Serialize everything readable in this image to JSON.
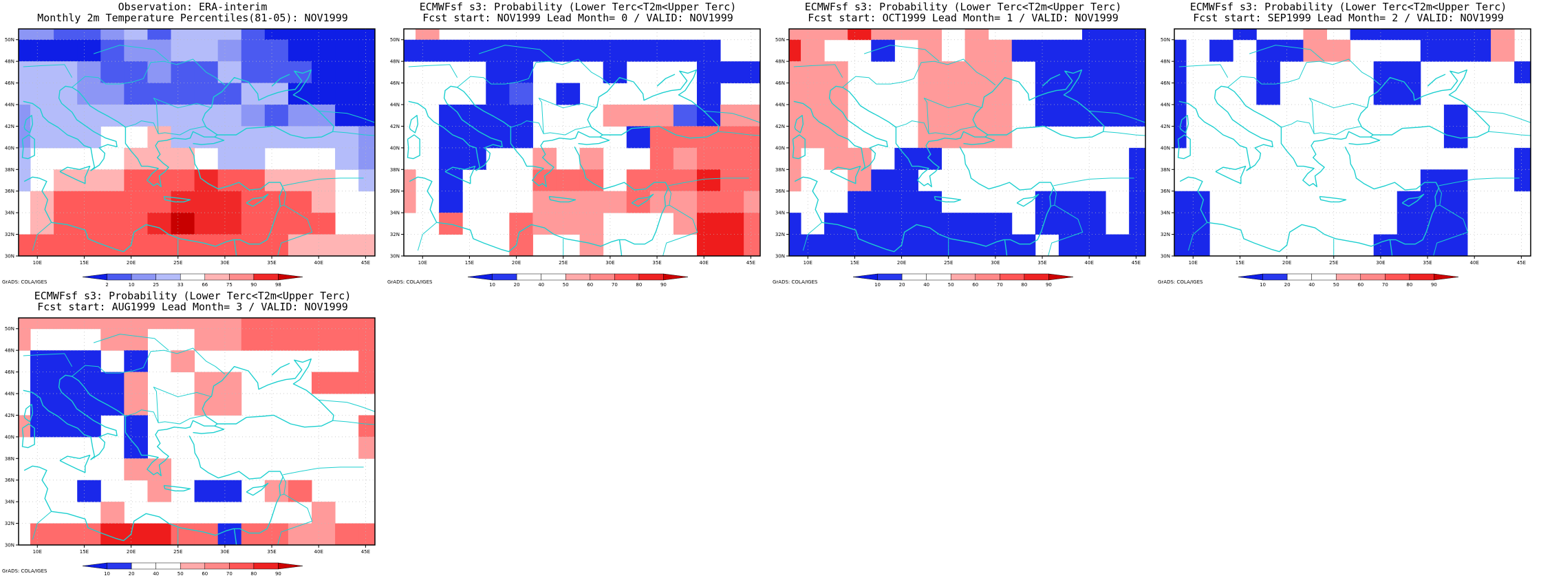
{
  "page": {
    "credit": "GrADS: COLA/IGES"
  },
  "axes": {
    "lon_ticks": [
      "10E",
      "15E",
      "20E",
      "25E",
      "30E",
      "35E",
      "40E",
      "45E"
    ],
    "lat_ticks": [
      "30N",
      "32N",
      "34N",
      "36N",
      "38N",
      "40N",
      "42N",
      "44N",
      "46N",
      "48N",
      "50N"
    ]
  },
  "colors": {
    "coast": "#1ccfcf",
    "obs_scale": [
      "#0f1ee6",
      "#4b5af0",
      "#8c96f5",
      "#b4bcfa",
      "#ffffff",
      "#ffb4b4",
      "#ff8c8c",
      "#ff5a5a",
      "#f02828",
      "#c80000"
    ],
    "prob_scale": [
      "#0f1ee6",
      "#2838ee",
      "#ffffff",
      "#ffffff",
      "#ffaaaa",
      "#ff8888",
      "#ff5555",
      "#ee2222",
      "#cc0000"
    ]
  },
  "chart_data": [
    {
      "type": "heatmap",
      "title": "Observation: ERA-interim",
      "subtitle": "Monthly 2m Temperature Percentiles(81-05): NOV1999",
      "colorbar_labels": [
        "2",
        "10",
        "25",
        "33",
        "66",
        "75",
        "90",
        "98"
      ],
      "xlim": [
        8,
        46
      ],
      "ylim": [
        30,
        51
      ],
      "grid_lon": [
        8.0,
        10.5,
        13.0,
        15.5,
        18.0,
        20.5,
        23.0,
        25.5,
        28.0,
        30.5,
        33.0,
        35.5,
        38.0,
        40.5,
        43.0,
        45.5
      ],
      "grid_lat": [
        51.0,
        49.0,
        47.0,
        45.0,
        43.0,
        41.0,
        39.0,
        37.0,
        35.0,
        33.0,
        31.0
      ],
      "cell_size_deg": [
        2.5,
        2
      ],
      "cells": [
        "3322342444211111",
        "1111233443221111",
        "4443223224222111",
        "4443322222441111",
        "3444444444323311",
        "3444556444444443",
        "4555566654455543",
        "4566677787766654",
        "5677777888777655",
        "5677778988777755",
        "7777777777776666"
      ],
      "cell_levels": {
        "1": "<2",
        "2": "2-10",
        "3": "10-25",
        "4": "25-33",
        "5": "33-66",
        "6": "66-75",
        "7": "75-90",
        "8": "90-98",
        "9": ">98"
      }
    },
    {
      "type": "heatmap",
      "title": "ECMWFsf s3: Probability (Lower Terc<T2m<Upper Terc)",
      "subtitle": "Fcst start: NOV1999   Lead Month= 0 / VALID: NOV1999",
      "colorbar_labels": [
        "10",
        "20",
        "40",
        "50",
        "60",
        "70",
        "80",
        "90"
      ],
      "xlim": [
        8,
        46
      ],
      "ylim": [
        30,
        51
      ],
      "grid_lon": [
        8.0,
        10.5,
        13.0,
        15.5,
        18.0,
        20.5,
        23.0,
        25.5,
        28.0,
        30.5,
        33.0,
        35.5,
        38.0,
        40.5,
        43.0,
        45.5
      ],
      "grid_lat": [
        51.0,
        49.0,
        47.0,
        45.0,
        43.0,
        41.0,
        39.0,
        37.0,
        35.0,
        33.0,
        31.0
      ],
      "cell_size_deg": [
        2.5,
        2
      ],
      "cells": [
        "0400000000000000",
        "1111111111111100",
        "0000110001000111",
        "0000120100000100",
        "0011110004442144",
        "0011110000155555",
        "0011004040054555",
        "4010005550555655",
        "4010004444544554",
        "0050054440004665",
        "0000050040000665"
      ],
      "cell_levels": {
        "0": "40-60 (white)",
        "1": "<10",
        "2": "10-20",
        "4": "60-70",
        "5": "70-80",
        "6": "80-90"
      }
    },
    {
      "type": "heatmap",
      "title": "ECMWFsf s3: Probability (Lower Terc<T2m<Upper Terc)",
      "subtitle": "Fcst start: OCT1999   Lead Month= 1 / VALID: NOV1999",
      "colorbar_labels": [
        "10",
        "20",
        "40",
        "50",
        "60",
        "70",
        "80",
        "90"
      ],
      "xlim": [
        8,
        46
      ],
      "ylim": [
        30,
        51
      ],
      "grid_lon": [
        8.0,
        10.5,
        13.0,
        15.5,
        18.0,
        20.5,
        23.0,
        25.5,
        28.0,
        30.5,
        33.0,
        35.5,
        38.0,
        40.5,
        43.0,
        45.5
      ],
      "grid_lat": [
        51.0,
        49.0,
        47.0,
        45.0,
        43.0,
        41.0,
        39.0,
        37.0,
        35.0,
        33.0,
        31.0
      ],
      "cell_size_deg": [
        2.5,
        2
      ],
      "cells": [
        "4446444040000111",
        "6400104044111111",
        "4440004444011111",
        "4440004444011111",
        "4440004444011111",
        "4440004444000000",
        "4044011000000001",
        "4004110000000001",
        "0001111000011101",
        "1011111111011101",
        "1111111111101111"
      ],
      "cell_levels": {
        "0": "40-60 (white)",
        "1": "<10",
        "4": "60-70",
        "6": "80-90"
      }
    },
    {
      "type": "heatmap",
      "title": "ECMWFsf s3: Probability (Lower Terc<T2m<Upper Terc)",
      "subtitle": "Fcst start: SEP1999   Lead Month= 2 / VALID: NOV1999",
      "colorbar_labels": [
        "10",
        "20",
        "40",
        "50",
        "60",
        "70",
        "80",
        "90"
      ],
      "xlim": [
        8,
        46
      ],
      "ylim": [
        30,
        51
      ],
      "grid_lon": [
        8.0,
        10.5,
        13.0,
        15.5,
        18.0,
        20.5,
        23.0,
        25.5,
        28.0,
        30.5,
        33.0,
        35.5,
        38.0,
        40.5,
        43.0,
        45.5
      ],
      "grid_lat": [
        51.0,
        49.0,
        47.0,
        45.0,
        43.0,
        41.0,
        39.0,
        37.0,
        35.0,
        33.0,
        31.0
      ],
      "cell_size_deg": [
        2.5,
        2
      ],
      "cells": [
        "0001004011111140",
        "1010114400011140",
        "1000100001100001",
        "1000100001100000",
        "1000000000001000",
        "1000000000001000",
        "0000000000000001",
        "0000000000011001",
        "1100000000111000",
        "1100000000111000",
        "1100000001111000"
      ],
      "cell_levels": {
        "0": "40-60 (white)",
        "1": "<10",
        "4": "60-70"
      }
    },
    {
      "type": "heatmap",
      "title": "ECMWFsf s3: Probability (Lower Terc<T2m<Upper Terc)",
      "subtitle": "Fcst start: AUG1999   Lead Month= 3 / VALID: NOV1999",
      "colorbar_labels": [
        "10",
        "20",
        "40",
        "50",
        "60",
        "70",
        "80",
        "90"
      ],
      "xlim": [
        8,
        46
      ],
      "ylim": [
        30,
        51
      ],
      "grid_lon": [
        8.0,
        10.5,
        13.0,
        15.5,
        18.0,
        20.5,
        23.0,
        25.5,
        28.0,
        30.5,
        33.0,
        35.5,
        38.0,
        40.5,
        43.0,
        45.5
      ],
      "grid_lat": [
        51.0,
        49.0,
        47.0,
        45.0,
        43.0,
        41.0,
        39.0,
        37.0,
        35.0,
        33.0,
        31.0
      ],
      "cell_size_deg": [
        2.5,
        2
      ],
      "cells": [
        "4444444444555555",
        "4000440044555555",
        "0111010400000005",
        "0111140044000555",
        "0111140044000000",
        "4111010000000005",
        "0000010000000004",
        "0000044000000000",
        "0001004011045000",
        "0000400000000400",
        "0555666551554455"
      ],
      "cell_levels": {
        "0": "40-60 (white)",
        "1": "<10",
        "4": "60-70",
        "5": "70-80",
        "6": "80-90"
      }
    }
  ]
}
